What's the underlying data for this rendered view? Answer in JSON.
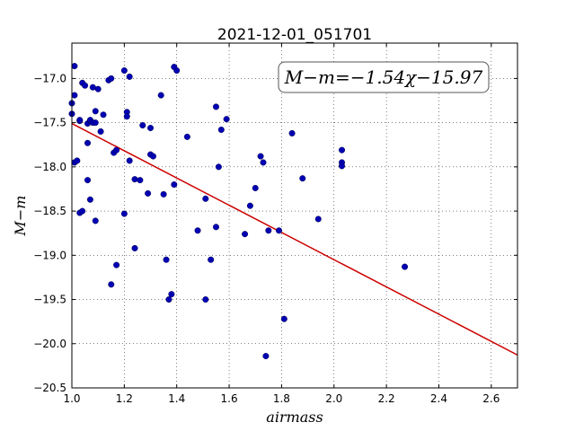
{
  "chart_data": {
    "type": "scatter",
    "title": "2021-12-01_051701",
    "xlabel": "airmass",
    "ylabel": "M−m",
    "xlim": [
      1.0,
      2.7
    ],
    "ylim": [
      -20.5,
      -16.6
    ],
    "y_inverted": false,
    "xticks": [
      1.0,
      1.2,
      1.4,
      1.6,
      1.8,
      2.0,
      2.2,
      2.4,
      2.6
    ],
    "xtick_labels": [
      "1.0",
      "1.2",
      "1.4",
      "1.6",
      "1.8",
      "2.0",
      "2.2",
      "2.4",
      "2.6"
    ],
    "yticks": [
      -20.5,
      -20.0,
      -19.5,
      -19.0,
      -18.5,
      -18.0,
      -17.5,
      -17.0
    ],
    "ytick_labels": [
      "−20.5",
      "−20.0",
      "−19.5",
      "−19.0",
      "−18.5",
      "−18.0",
      "−17.5",
      "−17.0"
    ],
    "grid": true,
    "annotation": "M−m=−1.54χ−15.97",
    "fit": {
      "slope": -1.54,
      "intercept": -15.97,
      "color": "#cc0000"
    },
    "point_color": "#0000b3",
    "points": [
      [
        1.0,
        -17.28
      ],
      [
        1.0,
        -17.4
      ],
      [
        1.01,
        -17.95
      ],
      [
        1.01,
        -16.86
      ],
      [
        1.01,
        -17.19
      ],
      [
        1.03,
        -17.48
      ],
      [
        1.03,
        -17.47
      ],
      [
        1.02,
        -17.93
      ],
      [
        1.03,
        -18.52
      ],
      [
        1.04,
        -18.5
      ],
      [
        1.04,
        -17.05
      ],
      [
        1.05,
        -17.08
      ],
      [
        1.06,
        -18.15
      ],
      [
        1.06,
        -17.73
      ],
      [
        1.06,
        -17.51
      ],
      [
        1.07,
        -17.48
      ],
      [
        1.07,
        -17.47
      ],
      [
        1.07,
        -18.37
      ],
      [
        1.08,
        -17.1
      ],
      [
        1.08,
        -17.5
      ],
      [
        1.09,
        -17.37
      ],
      [
        1.09,
        -17.5
      ],
      [
        1.09,
        -18.61
      ],
      [
        1.1,
        -17.12
      ],
      [
        1.11,
        -17.6
      ],
      [
        1.12,
        -17.41
      ],
      [
        1.14,
        -17.02
      ],
      [
        1.15,
        -17.0
      ],
      [
        1.15,
        -19.33
      ],
      [
        1.16,
        -17.84
      ],
      [
        1.17,
        -17.81
      ],
      [
        1.17,
        -19.11
      ],
      [
        1.2,
        -16.91
      ],
      [
        1.2,
        -18.53
      ],
      [
        1.21,
        -17.38
      ],
      [
        1.21,
        -17.43
      ],
      [
        1.22,
        -16.98
      ],
      [
        1.22,
        -17.93
      ],
      [
        1.24,
        -18.14
      ],
      [
        1.24,
        -18.92
      ],
      [
        1.26,
        -18.15
      ],
      [
        1.27,
        -17.53
      ],
      [
        1.29,
        -18.3
      ],
      [
        1.3,
        -17.56
      ],
      [
        1.3,
        -17.86
      ],
      [
        1.31,
        -17.88
      ],
      [
        1.34,
        -17.19
      ],
      [
        1.35,
        -18.31
      ],
      [
        1.36,
        -19.05
      ],
      [
        1.37,
        -19.5
      ],
      [
        1.38,
        -19.44
      ],
      [
        1.39,
        -18.2
      ],
      [
        1.39,
        -16.87
      ],
      [
        1.4,
        -16.91
      ],
      [
        1.44,
        -17.66
      ],
      [
        1.48,
        -18.72
      ],
      [
        1.51,
        -18.36
      ],
      [
        1.51,
        -19.5
      ],
      [
        1.53,
        -19.05
      ],
      [
        1.55,
        -17.32
      ],
      [
        1.55,
        -18.68
      ],
      [
        1.56,
        -18.0
      ],
      [
        1.57,
        -17.58
      ],
      [
        1.59,
        -17.46
      ],
      [
        1.66,
        -18.76
      ],
      [
        1.68,
        -18.44
      ],
      [
        1.7,
        -18.24
      ],
      [
        1.72,
        -17.88
      ],
      [
        1.73,
        -17.95
      ],
      [
        1.74,
        -20.14
      ],
      [
        1.75,
        -18.72
      ],
      [
        1.79,
        -18.72
      ],
      [
        1.81,
        -19.72
      ],
      [
        1.84,
        -17.62
      ],
      [
        1.88,
        -18.13
      ],
      [
        1.94,
        -18.59
      ],
      [
        2.03,
        -17.81
      ],
      [
        2.03,
        -17.95
      ],
      [
        2.03,
        -17.99
      ],
      [
        2.27,
        -19.13
      ]
    ]
  }
}
